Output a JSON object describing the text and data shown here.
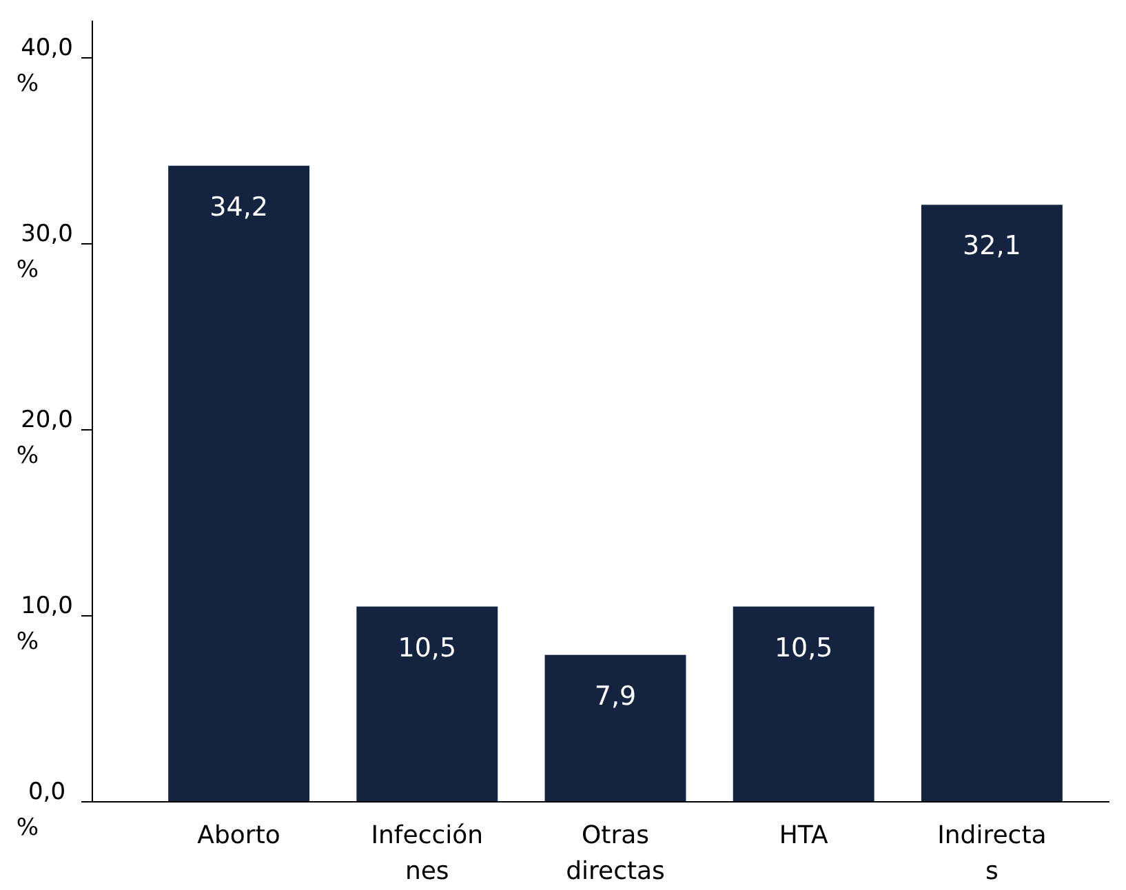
{
  "chart_data": {
    "type": "bar",
    "categories": [
      "Aborto",
      "Infección nes",
      "Otras directas",
      "HTA",
      "Indirecta s"
    ],
    "values": [
      34.2,
      10.5,
      7.9,
      10.5,
      32.1
    ],
    "color": "#14233f",
    "value_labels": [
      "34,2",
      "10,5",
      "7,9",
      "10,5",
      "32,1"
    ],
    "ylim": [
      0,
      42
    ],
    "yticks": [
      {
        "value": 0,
        "label": "0,0 %"
      },
      {
        "value": 10,
        "label": "10,0 %"
      },
      {
        "value": 20,
        "label": "20,0 %"
      },
      {
        "value": 30,
        "label": "30,0 %"
      },
      {
        "value": 40,
        "label": "40,0 %"
      }
    ],
    "grid": false
  }
}
